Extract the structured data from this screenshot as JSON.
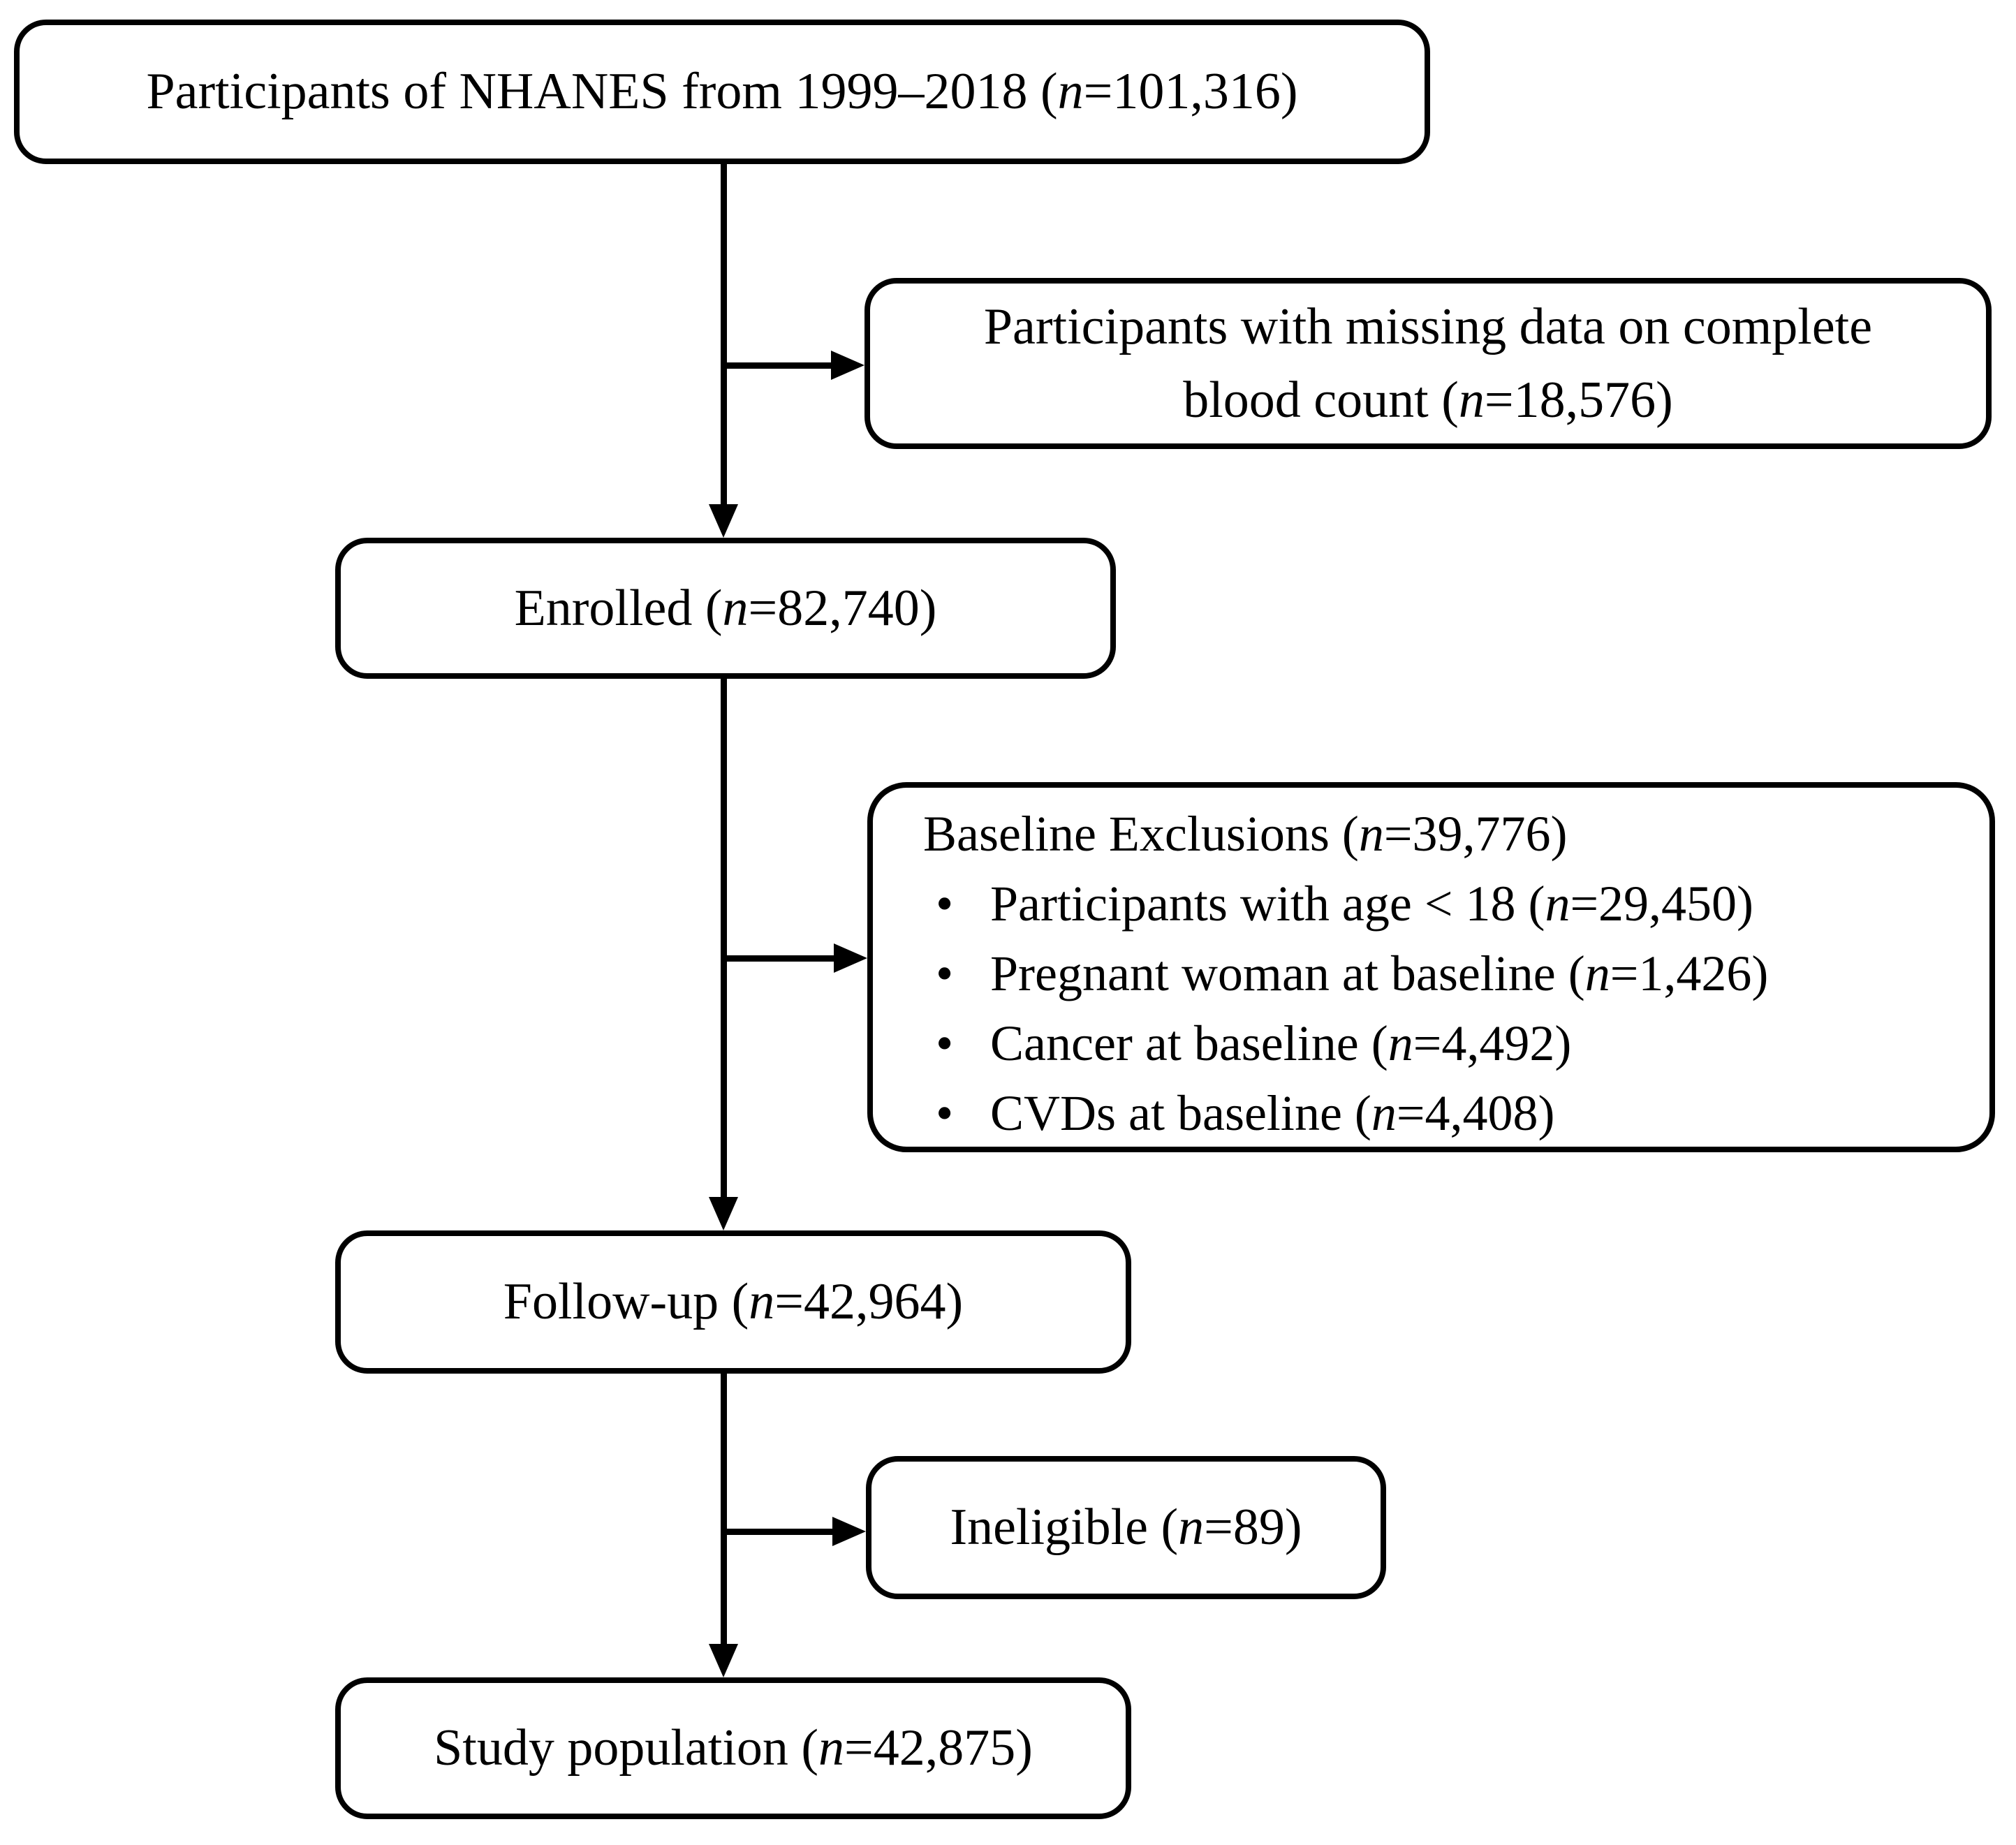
{
  "figure": {
    "type": "participant-flow-diagram",
    "background_color": "#ffffff",
    "stroke_color": "#000000",
    "n_symbol": "n"
  },
  "nodes": {
    "top": {
      "pre": "Participants of NHANES from 1999–2018 (",
      "n": "n",
      "post": "=101,316)"
    },
    "missing": {
      "line1": "Participants with missing data on complete",
      "line2_pre": "blood count (",
      "n": "n",
      "line2_post": "=18,576)"
    },
    "enrolled": {
      "pre": "Enrolled (",
      "n": "n",
      "post": "=82,740)"
    },
    "exclusions": {
      "title_pre": "Baseline Exclusions (",
      "n": "n",
      "title_post": "=39,776)",
      "bullets": [
        {
          "bullet": "•",
          "pre": "Participants with age < 18 (",
          "n": "n",
          "post": "=29,450)"
        },
        {
          "bullet": "•",
          "pre": "Pregnant woman at baseline (",
          "n": "n",
          "post": "=1,426)"
        },
        {
          "bullet": "•",
          "pre": "Cancer at baseline (",
          "n": "n",
          "post": "=4,492)"
        },
        {
          "bullet": "•",
          "pre": "CVDs at baseline (",
          "n": "n",
          "post": "=4,408)"
        }
      ]
    },
    "followup": {
      "pre": "Follow-up (",
      "n": "n",
      "post": "=42,964)"
    },
    "ineligible": {
      "pre": "Ineligible (",
      "n": "n",
      "post": "=89)"
    },
    "study": {
      "pre": "Study population (",
      "n": "n",
      "post": "=42,875)"
    }
  }
}
